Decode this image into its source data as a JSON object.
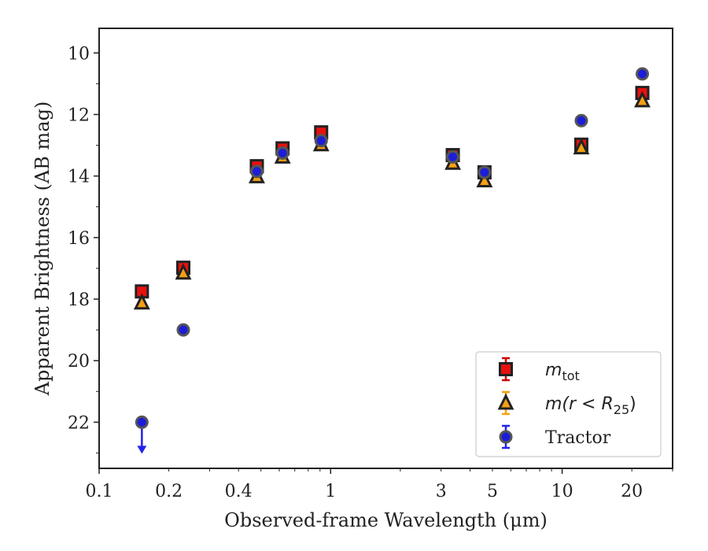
{
  "chart_data": {
    "type": "scatter",
    "title": "",
    "xlabel": "Observed-frame Wavelength (μm)",
    "ylabel": "Apparent Brightness (AB mag)",
    "xscale": "log",
    "xlim": [
      0.1,
      30
    ],
    "ylim": [
      23.5,
      9.2
    ],
    "y_inverted": true,
    "x_ticks": [
      0.1,
      0.2,
      0.4,
      1,
      3,
      5,
      10,
      20
    ],
    "x_tick_labels": [
      "0.1",
      "0.2",
      "0.4",
      "1",
      "3",
      "5",
      "10",
      "20"
    ],
    "y_ticks": [
      10,
      12,
      14,
      16,
      18,
      20,
      22
    ],
    "y_tick_labels": [
      "10",
      "12",
      "14",
      "16",
      "18",
      "20",
      "22"
    ],
    "grid": false,
    "legend_position": "lower-right",
    "series": [
      {
        "legend_label": "mtot",
        "legend_main": "m",
        "legend_sub": "tot",
        "marker": "square",
        "color": "#e8110f",
        "edge_color": "#222222",
        "errorbar_color": "#cc0000",
        "points": [
          {
            "x": 0.153,
            "y": 17.75
          },
          {
            "x": 0.231,
            "y": 16.98
          },
          {
            "x": 0.48,
            "y": 13.68
          },
          {
            "x": 0.62,
            "y": 13.1
          },
          {
            "x": 0.91,
            "y": 12.58
          },
          {
            "x": 3.37,
            "y": 13.32
          },
          {
            "x": 4.62,
            "y": 13.88
          },
          {
            "x": 12.1,
            "y": 12.98
          },
          {
            "x": 22.2,
            "y": 11.3
          }
        ]
      },
      {
        "legend_label": "m(r < R25)",
        "legend_main": "m(r < R",
        "legend_sub": "25",
        "legend_close": ")",
        "marker": "triangle",
        "color": "#f4a013",
        "edge_color": "#222222",
        "errorbar_color": "#f4a013",
        "points": [
          {
            "x": 0.153,
            "y": 18.12
          },
          {
            "x": 0.231,
            "y": 17.15
          },
          {
            "x": 0.48,
            "y": 14.02
          },
          {
            "x": 0.62,
            "y": 13.38
          },
          {
            "x": 0.91,
            "y": 12.98
          },
          {
            "x": 3.37,
            "y": 13.58
          },
          {
            "x": 4.62,
            "y": 14.15
          },
          {
            "x": 12.1,
            "y": 13.08
          },
          {
            "x": 22.2,
            "y": 11.55
          }
        ]
      },
      {
        "legend_label": "Tractor",
        "marker": "circle",
        "color": "#1d1dd8",
        "edge_color": "#555555",
        "errorbar_color": "#2222ee",
        "points": [
          {
            "x": 0.153,
            "y": 22.0,
            "upper_limit": true
          },
          {
            "x": 0.231,
            "y": 19.0
          },
          {
            "x": 0.48,
            "y": 13.85
          },
          {
            "x": 0.62,
            "y": 13.25
          },
          {
            "x": 0.91,
            "y": 12.85
          },
          {
            "x": 3.37,
            "y": 13.38
          },
          {
            "x": 4.62,
            "y": 13.88
          },
          {
            "x": 12.1,
            "y": 12.2
          },
          {
            "x": 22.2,
            "y": 10.68
          }
        ]
      }
    ]
  }
}
